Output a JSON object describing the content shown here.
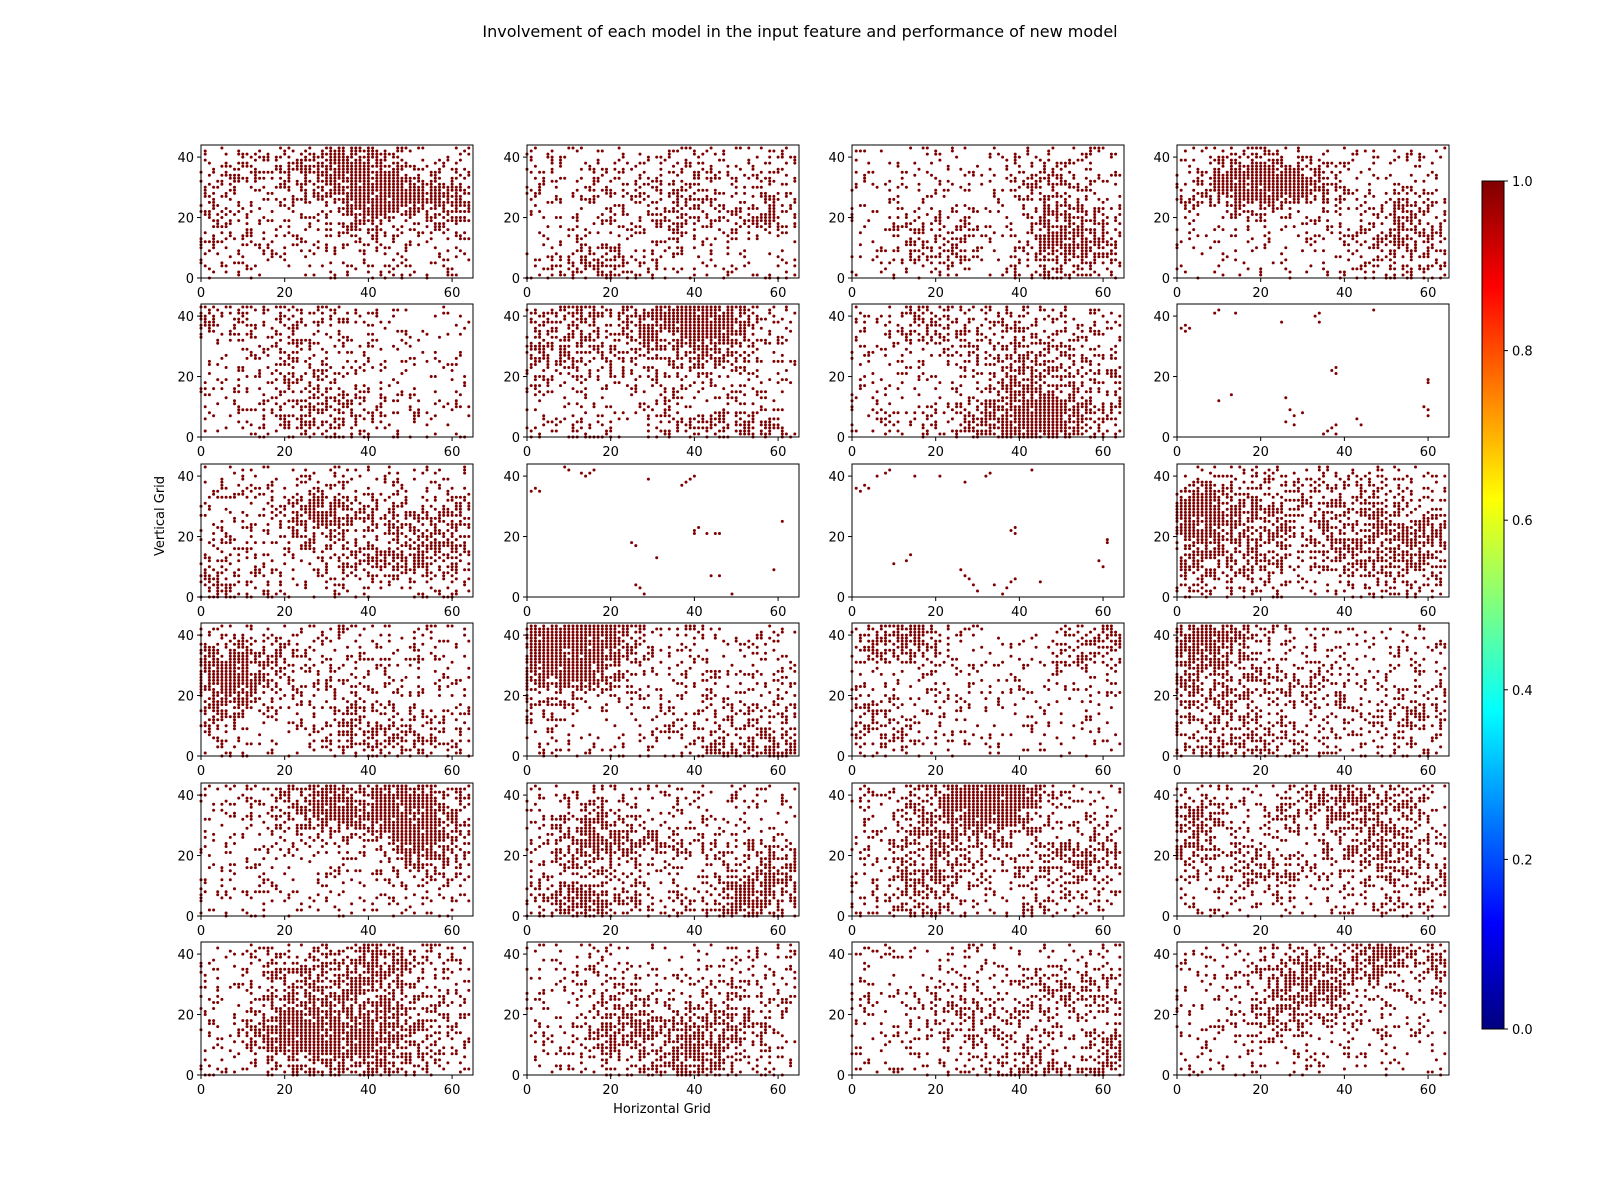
{
  "chart_data": {
    "type": "scatter",
    "title": "Involvement of each model in the input feature and performance of new model",
    "xlabel": "Horizontal Grid",
    "ylabel": "Vertical Grid",
    "grid": false,
    "layout": {
      "rows": 6,
      "cols": 4
    },
    "xlim": [
      0,
      65
    ],
    "ylim": [
      0,
      44
    ],
    "xticks": [
      0,
      20,
      40,
      60
    ],
    "yticks": [
      0,
      20,
      40
    ],
    "marker_color": "#7f0000",
    "colorbar": {
      "colormap": "jet",
      "range": [
        0.0,
        1.0
      ],
      "ticks": [
        "0.0",
        "0.2",
        "0.4",
        "0.6",
        "0.8",
        "1.0"
      ],
      "stops": [
        "#00007f",
        "#0000ff",
        "#007fff",
        "#00ffff",
        "#7fff7f",
        "#ffff00",
        "#ff7f00",
        "#ff0000",
        "#7f0000"
      ]
    },
    "subplots": [
      {
        "id": 1,
        "density": 0.45,
        "pattern": "top-left-right"
      },
      {
        "id": 2,
        "density": 0.33,
        "pattern": "spread"
      },
      {
        "id": 3,
        "density": 0.33,
        "pattern": "spread"
      },
      {
        "id": 4,
        "density": 0.36,
        "pattern": "diagonal"
      },
      {
        "id": 5,
        "density": 0.32,
        "pattern": "left"
      },
      {
        "id": 6,
        "density": 0.52,
        "pattern": "dense"
      },
      {
        "id": 7,
        "density": 0.45,
        "pattern": "dense"
      },
      {
        "id": 8,
        "density": 0.03,
        "pattern": "sparse",
        "points": [
          [
            1,
            36
          ],
          [
            2,
            37
          ],
          [
            3,
            36
          ],
          [
            2,
            35
          ],
          [
            9,
            41
          ],
          [
            10,
            42
          ],
          [
            14,
            41
          ],
          [
            25,
            38
          ],
          [
            33,
            40
          ],
          [
            34,
            41
          ],
          [
            34,
            38
          ],
          [
            38,
            23
          ],
          [
            37,
            22
          ],
          [
            38,
            21
          ],
          [
            10,
            12
          ],
          [
            13,
            14
          ],
          [
            26,
            13
          ],
          [
            27,
            9
          ],
          [
            28,
            7
          ],
          [
            30,
            8
          ],
          [
            26,
            5
          ],
          [
            28,
            4
          ],
          [
            36,
            2
          ],
          [
            37,
            3
          ],
          [
            38,
            4
          ],
          [
            38,
            1
          ],
          [
            35,
            1
          ],
          [
            43,
            6
          ],
          [
            44,
            4
          ],
          [
            59,
            10
          ],
          [
            60,
            9
          ],
          [
            60,
            7
          ],
          [
            60,
            19
          ],
          [
            60,
            18
          ],
          [
            47,
            42
          ]
        ]
      },
      {
        "id": 9,
        "density": 0.48,
        "pattern": "dense"
      },
      {
        "id": 10,
        "density": 0.02,
        "pattern": "sparse",
        "points": [
          [
            1,
            35
          ],
          [
            2,
            36
          ],
          [
            3,
            35
          ],
          [
            9,
            43
          ],
          [
            10,
            42
          ],
          [
            13,
            41
          ],
          [
            14,
            40
          ],
          [
            15,
            41
          ],
          [
            16,
            42
          ],
          [
            29,
            39
          ],
          [
            37,
            37
          ],
          [
            38,
            38
          ],
          [
            39,
            39
          ],
          [
            40,
            40
          ],
          [
            40,
            22
          ],
          [
            40,
            21
          ],
          [
            41,
            23
          ],
          [
            43,
            21
          ],
          [
            45,
            21
          ],
          [
            46,
            21
          ],
          [
            25,
            18
          ],
          [
            26,
            17
          ],
          [
            31,
            13
          ],
          [
            26,
            4
          ],
          [
            27,
            3
          ],
          [
            28,
            1
          ],
          [
            44,
            7
          ],
          [
            46,
            7
          ],
          [
            49,
            1
          ],
          [
            59,
            9
          ],
          [
            61,
            25
          ]
        ]
      },
      {
        "id": 11,
        "density": 0.02,
        "pattern": "sparse",
        "points": [
          [
            1,
            36
          ],
          [
            2,
            35
          ],
          [
            3,
            37
          ],
          [
            4,
            36
          ],
          [
            6,
            40
          ],
          [
            8,
            41
          ],
          [
            9,
            42
          ],
          [
            15,
            40
          ],
          [
            21,
            40
          ],
          [
            27,
            38
          ],
          [
            32,
            40
          ],
          [
            33,
            41
          ],
          [
            43,
            42
          ],
          [
            10,
            11
          ],
          [
            13,
            12
          ],
          [
            14,
            14
          ],
          [
            26,
            9
          ],
          [
            27,
            7
          ],
          [
            28,
            6
          ],
          [
            29,
            4
          ],
          [
            30,
            2
          ],
          [
            36,
            1
          ],
          [
            37,
            3
          ],
          [
            38,
            5
          ],
          [
            39,
            6
          ],
          [
            45,
            5
          ],
          [
            38,
            22
          ],
          [
            39,
            23
          ],
          [
            39,
            21
          ],
          [
            59,
            12
          ],
          [
            60,
            10
          ],
          [
            61,
            18
          ],
          [
            61,
            19
          ],
          [
            34,
            4
          ]
        ]
      },
      {
        "id": 12,
        "density": 0.5,
        "pattern": "dense"
      },
      {
        "id": 13,
        "density": 0.48,
        "pattern": "dense"
      },
      {
        "id": 14,
        "density": 0.55,
        "pattern": "dense"
      },
      {
        "id": 15,
        "density": 0.33,
        "pattern": "spread"
      },
      {
        "id": 16,
        "density": 0.45,
        "pattern": "dense"
      },
      {
        "id": 17,
        "density": 0.42,
        "pattern": "top"
      },
      {
        "id": 18,
        "density": 0.48,
        "pattern": "dense"
      },
      {
        "id": 19,
        "density": 0.48,
        "pattern": "dense"
      },
      {
        "id": 20,
        "density": 0.4,
        "pattern": "dense"
      },
      {
        "id": 21,
        "density": 0.4,
        "pattern": "dense"
      },
      {
        "id": 22,
        "density": 0.36,
        "pattern": "spread"
      },
      {
        "id": 23,
        "density": 0.4,
        "pattern": "dense"
      },
      {
        "id": 24,
        "density": 0.36,
        "pattern": "spread"
      }
    ]
  }
}
